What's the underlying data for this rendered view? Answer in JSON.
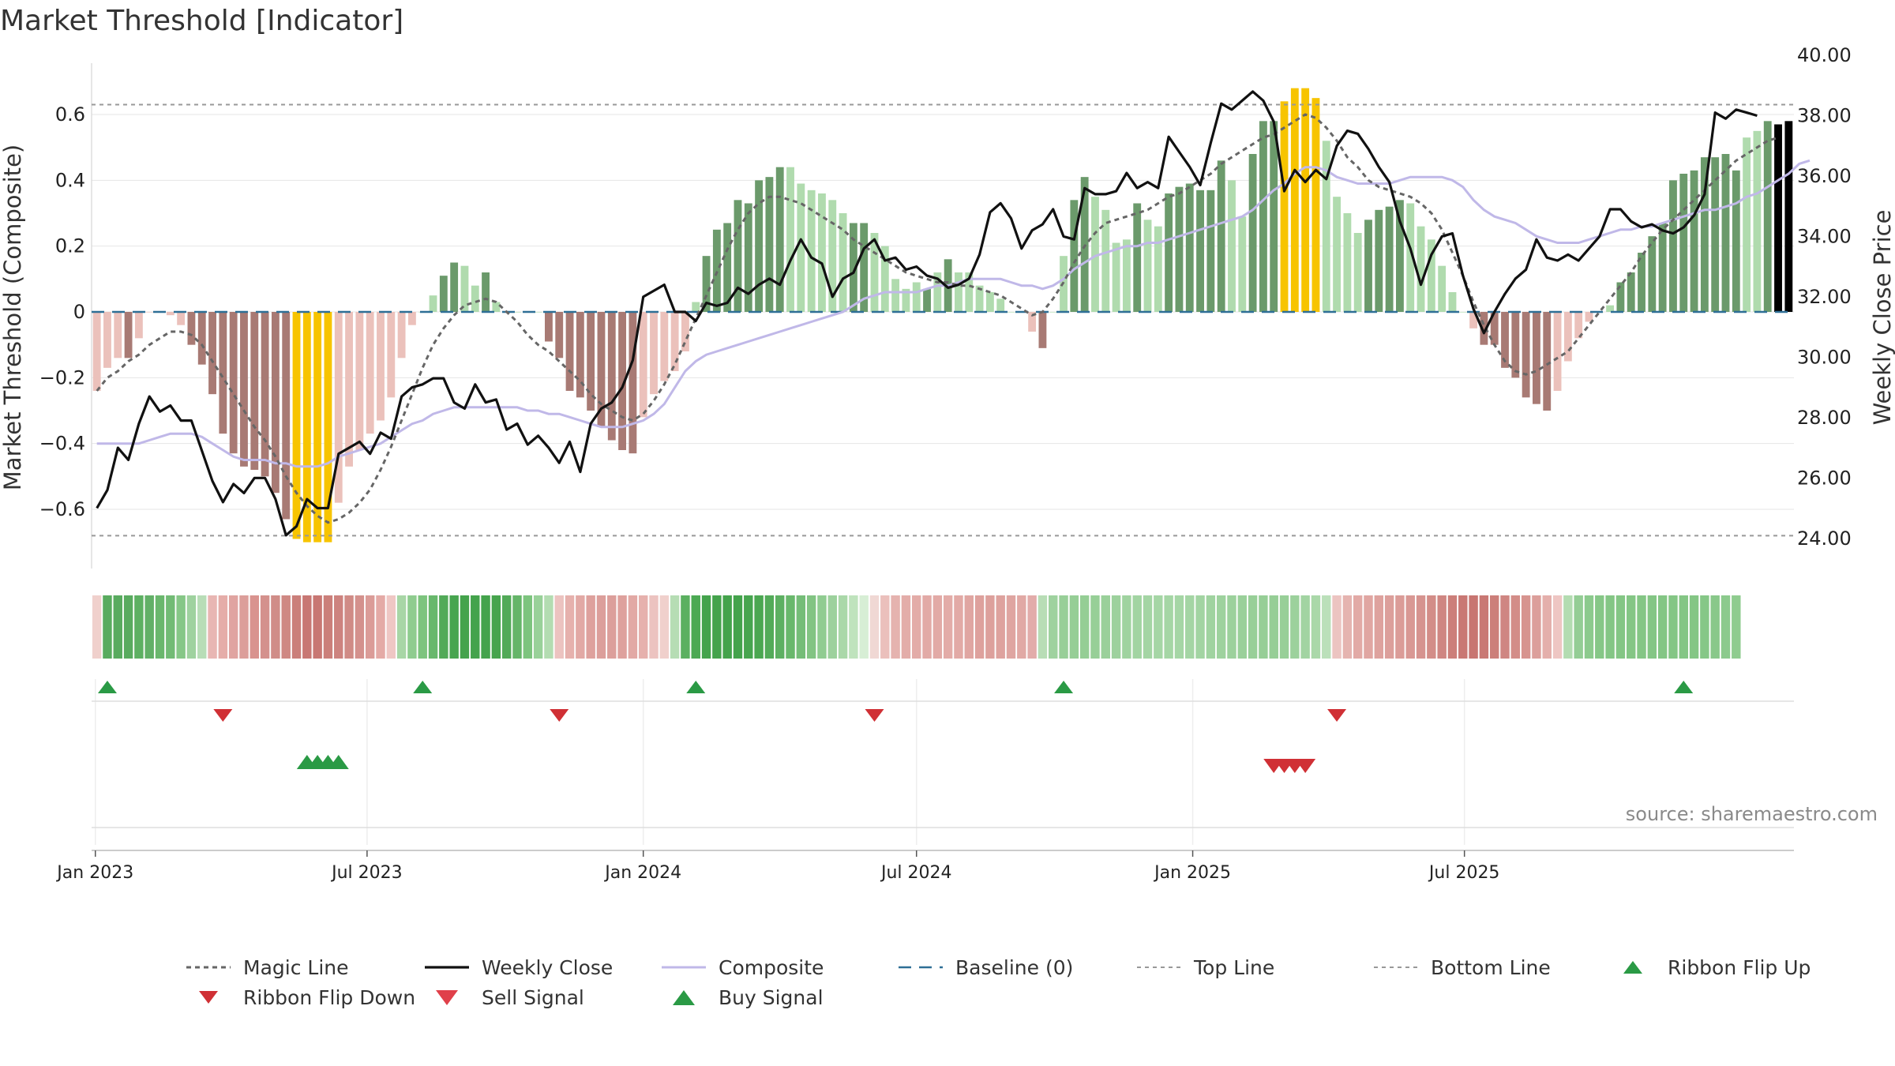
{
  "chart_data": {
    "type": "bar",
    "title": "Market Threshold [Indicator]",
    "ylabel_left": "Market Threshold (Composite)",
    "ylabel_right": "Weekly Close Price",
    "source": "source: sharemaestro.com",
    "x_start": "2023-01-02",
    "x_end": "2025-09-15",
    "x_ticks": [
      {
        "date": "2023-01-01",
        "label": "Jan 2023"
      },
      {
        "date": "2023-07-01",
        "label": "Jul 2023"
      },
      {
        "date": "2024-01-01",
        "label": "Jan 2024"
      },
      {
        "date": "2024-07-01",
        "label": "Jul 2024"
      },
      {
        "date": "2025-01-01",
        "label": "Jan 2025"
      },
      {
        "date": "2025-07-01",
        "label": "Jul 2025"
      }
    ],
    "ylim_left": [
      -0.78,
      0.78
    ],
    "yticks_left": [
      {
        "value": 0.6,
        "label": "0.6"
      },
      {
        "value": 0.4,
        "label": "0.4"
      },
      {
        "value": 0.2,
        "label": "0.2"
      },
      {
        "value": 0,
        "label": "0"
      },
      {
        "value": -0.2,
        "label": "−0.2"
      },
      {
        "value": -0.4,
        "label": "−0.4"
      },
      {
        "value": -0.6,
        "label": "−0.6"
      }
    ],
    "ylim_right": [
      23.0,
      40.0
    ],
    "yticks_right": [
      {
        "value": 40,
        "label": "40.00"
      },
      {
        "value": 38,
        "label": "38.00"
      },
      {
        "value": 36,
        "label": "36.00"
      },
      {
        "value": 34,
        "label": "34.00"
      },
      {
        "value": 32,
        "label": "32.00"
      },
      {
        "value": 30,
        "label": "30.00"
      },
      {
        "value": 28,
        "label": "28.00"
      },
      {
        "value": 26,
        "label": "26.00"
      },
      {
        "value": 24,
        "label": "24.00"
      }
    ],
    "top_line": 0.63,
    "bottom_line": -0.68,
    "grid": true,
    "legend_position": "bottom",
    "colors": {
      "strong_up": "#6b9a6b",
      "weak_up": "#b0dbae",
      "strong_down": "#a87a74",
      "weak_down": "#ebc1bb",
      "extreme": "#f7c400",
      "close": "#111111",
      "composite": "#c0b8e8",
      "magic": "#666666",
      "baseline": "#2e6f96",
      "threshold": "#999999",
      "buy": "#2a9a45",
      "sell": "#d03035"
    },
    "composite_bars": [
      -0.24,
      -0.17,
      -0.14,
      -0.14,
      -0.08,
      0.0,
      0.0,
      -0.01,
      -0.04,
      -0.1,
      -0.16,
      -0.25,
      -0.37,
      -0.43,
      -0.47,
      -0.48,
      -0.5,
      -0.55,
      -0.63,
      -0.69,
      -0.7,
      -0.7,
      -0.7,
      -0.58,
      -0.47,
      -0.42,
      -0.37,
      -0.33,
      -0.26,
      -0.14,
      -0.04,
      0.0,
      0.05,
      0.11,
      0.15,
      0.14,
      0.08,
      0.12,
      0.03,
      0.0,
      0.0,
      0.0,
      0.0,
      -0.09,
      -0.14,
      -0.24,
      -0.26,
      -0.3,
      -0.35,
      -0.39,
      -0.42,
      -0.43,
      -0.32,
      -0.25,
      -0.21,
      -0.18,
      -0.12,
      0.03,
      0.17,
      0.25,
      0.27,
      0.34,
      0.33,
      0.4,
      0.41,
      0.44,
      0.44,
      0.39,
      0.37,
      0.36,
      0.34,
      0.3,
      0.27,
      0.27,
      0.24,
      0.2,
      0.1,
      0.07,
      0.09,
      0.07,
      0.12,
      0.16,
      0.12,
      0.12,
      0.08,
      0.06,
      0.04,
      0.0,
      0.0,
      -0.06,
      -0.11,
      0.0,
      0.17,
      0.34,
      0.41,
      0.35,
      0.31,
      0.21,
      0.22,
      0.33,
      0.28,
      0.26,
      0.36,
      0.38,
      0.39,
      0.37,
      0.37,
      0.46,
      0.4,
      0.29,
      0.48,
      0.58,
      0.58,
      0.64,
      0.68,
      0.68,
      0.65,
      0.52,
      0.35,
      0.3,
      0.24,
      0.28,
      0.31,
      0.32,
      0.34,
      0.33,
      0.26,
      0.22,
      0.14,
      0.06,
      0.0,
      -0.05,
      -0.1,
      -0.1,
      -0.17,
      -0.2,
      -0.26,
      -0.28,
      -0.3,
      -0.24,
      -0.15,
      -0.08,
      -0.03,
      0.0,
      0.02,
      0.09,
      0.12,
      0.18,
      0.23,
      0.27,
      0.4,
      0.42,
      0.43,
      0.47,
      0.47,
      0.48,
      0.43,
      0.53,
      0.55,
      0.58,
      0.57,
      0.58
    ],
    "bar_state": [
      "wd",
      "wd",
      "wd",
      "sd",
      "wd",
      "wd",
      "wd",
      "wd",
      "wd",
      "sd",
      "sd",
      "sd",
      "sd",
      "sd",
      "sd",
      "sd",
      "sd",
      "sd",
      "sd",
      "ex",
      "ex",
      "ex",
      "ex",
      "wd",
      "wd",
      "wd",
      "wd",
      "wd",
      "wd",
      "wd",
      "wd",
      "wu",
      "wu",
      "su",
      "su",
      "wu",
      "wu",
      "su",
      "wu",
      "wu",
      "wu",
      "wu",
      "wu",
      "sd",
      "sd",
      "sd",
      "sd",
      "sd",
      "sd",
      "sd",
      "sd",
      "sd",
      "wd",
      "wd",
      "wd",
      "wd",
      "wd",
      "wu",
      "su",
      "su",
      "su",
      "su",
      "su",
      "su",
      "su",
      "su",
      "wu",
      "wu",
      "wu",
      "wu",
      "wu",
      "wu",
      "su",
      "su",
      "wu",
      "wu",
      "wu",
      "wu",
      "wu",
      "su",
      "wu",
      "su",
      "wu",
      "wu",
      "wu",
      "wu",
      "wu",
      "wu",
      "wu",
      "wd",
      "sd",
      "wu",
      "wu",
      "su",
      "su",
      "wu",
      "wu",
      "wu",
      "wu",
      "su",
      "wu",
      "wu",
      "su",
      "su",
      "su",
      "su",
      "su",
      "su",
      "wu",
      "wu",
      "su",
      "su",
      "su",
      "ex",
      "ex",
      "ex",
      "ex",
      "wu",
      "wu",
      "wu",
      "wu",
      "su",
      "su",
      "su",
      "su",
      "wu",
      "wu",
      "wu",
      "wu",
      "wu",
      "wu",
      "wd",
      "sd",
      "sd",
      "sd",
      "sd",
      "sd",
      "sd",
      "sd",
      "wd",
      "wd",
      "wd",
      "wd",
      "wu",
      "wu",
      "su",
      "su",
      "su",
      "su",
      "su",
      "su",
      "su",
      "su",
      "su",
      "su",
      "su",
      "su",
      "wu",
      "wu",
      "su"
    ],
    "weekly_close": [
      25.0,
      25.6,
      27.0,
      26.6,
      27.8,
      28.7,
      28.2,
      28.4,
      27.9,
      27.9,
      26.9,
      25.9,
      25.2,
      25.8,
      25.5,
      26.0,
      26.0,
      25.3,
      24.1,
      24.4,
      25.3,
      25.0,
      25.0,
      26.8,
      27.0,
      27.2,
      26.8,
      27.5,
      27.3,
      28.7,
      29.0,
      29.1,
      29.3,
      29.3,
      28.5,
      28.3,
      29.1,
      28.5,
      28.6,
      27.6,
      27.8,
      27.1,
      27.4,
      27.0,
      26.5,
      27.2,
      26.2,
      27.8,
      28.3,
      28.5,
      29.0,
      29.9,
      32.0,
      32.2,
      32.4,
      31.5,
      31.5,
      31.2,
      31.8,
      31.7,
      31.8,
      32.3,
      32.1,
      32.4,
      32.6,
      32.4,
      33.2,
      33.9,
      33.3,
      33.1,
      32.0,
      32.6,
      32.8,
      33.6,
      33.9,
      33.2,
      33.3,
      32.9,
      33.0,
      32.7,
      32.6,
      32.3,
      32.4,
      32.6,
      33.4,
      34.8,
      35.1,
      34.6,
      33.6,
      34.2,
      34.4,
      34.9,
      34.0,
      33.9,
      35.6,
      35.4,
      35.4,
      35.5,
      36.1,
      35.6,
      35.8,
      35.6,
      37.3,
      36.8,
      36.3,
      35.7,
      37.1,
      38.4,
      38.2,
      38.5,
      38.8,
      38.5,
      37.8,
      35.5,
      36.2,
      35.8,
      36.2,
      35.9,
      37.0,
      37.5,
      37.4,
      36.9,
      36.3,
      35.8,
      34.5,
      33.6,
      32.4,
      33.4,
      34.0,
      34.1,
      32.7,
      31.6,
      30.8,
      31.5,
      32.1,
      32.6,
      32.9,
      33.9,
      33.3,
      33.2,
      33.4,
      33.2,
      33.6,
      34.0,
      34.9,
      34.9,
      34.5,
      34.3,
      34.4,
      34.2,
      34.1,
      34.3,
      34.7,
      35.4,
      38.1,
      37.9,
      38.2,
      38.1,
      38.0
    ],
    "composite_line": [
      -0.4,
      -0.4,
      -0.4,
      -0.4,
      -0.4,
      -0.39,
      -0.38,
      -0.37,
      -0.37,
      -0.37,
      -0.38,
      -0.4,
      -0.42,
      -0.44,
      -0.45,
      -0.45,
      -0.45,
      -0.46,
      -0.46,
      -0.47,
      -0.47,
      -0.47,
      -0.46,
      -0.44,
      -0.43,
      -0.42,
      -0.41,
      -0.4,
      -0.38,
      -0.36,
      -0.34,
      -0.33,
      -0.31,
      -0.3,
      -0.29,
      -0.29,
      -0.29,
      -0.29,
      -0.29,
      -0.29,
      -0.29,
      -0.3,
      -0.3,
      -0.31,
      -0.31,
      -0.32,
      -0.33,
      -0.34,
      -0.35,
      -0.35,
      -0.35,
      -0.34,
      -0.33,
      -0.31,
      -0.28,
      -0.23,
      -0.18,
      -0.15,
      -0.13,
      -0.12,
      -0.11,
      -0.1,
      -0.09,
      -0.08,
      -0.07,
      -0.06,
      -0.05,
      -0.04,
      -0.03,
      -0.02,
      -0.01,
      0.0,
      0.02,
      0.04,
      0.05,
      0.06,
      0.06,
      0.06,
      0.06,
      0.07,
      0.08,
      0.08,
      0.09,
      0.1,
      0.1,
      0.1,
      0.1,
      0.09,
      0.08,
      0.08,
      0.07,
      0.08,
      0.1,
      0.13,
      0.15,
      0.17,
      0.18,
      0.19,
      0.2,
      0.2,
      0.21,
      0.21,
      0.22,
      0.23,
      0.24,
      0.25,
      0.26,
      0.27,
      0.28,
      0.29,
      0.31,
      0.34,
      0.37,
      0.39,
      0.42,
      0.44,
      0.44,
      0.43,
      0.41,
      0.4,
      0.39,
      0.39,
      0.39,
      0.39,
      0.4,
      0.41,
      0.41,
      0.41,
      0.41,
      0.4,
      0.38,
      0.34,
      0.31,
      0.29,
      0.28,
      0.27,
      0.25,
      0.23,
      0.22,
      0.21,
      0.21,
      0.21,
      0.22,
      0.23,
      0.24,
      0.25,
      0.25,
      0.26,
      0.26,
      0.27,
      0.28,
      0.29,
      0.3,
      0.31,
      0.31,
      0.32,
      0.33,
      0.35,
      0.36,
      0.38,
      0.4,
      0.42,
      0.45,
      0.46
    ],
    "magic_line": [
      -0.24,
      -0.2,
      -0.18,
      -0.15,
      -0.13,
      -0.1,
      -0.08,
      -0.06,
      -0.06,
      -0.07,
      -0.1,
      -0.15,
      -0.2,
      -0.25,
      -0.3,
      -0.35,
      -0.39,
      -0.44,
      -0.5,
      -0.55,
      -0.59,
      -0.62,
      -0.64,
      -0.63,
      -0.61,
      -0.58,
      -0.54,
      -0.48,
      -0.41,
      -0.33,
      -0.25,
      -0.17,
      -0.1,
      -0.05,
      -0.01,
      0.02,
      0.03,
      0.04,
      0.03,
      0.0,
      -0.03,
      -0.07,
      -0.1,
      -0.12,
      -0.15,
      -0.18,
      -0.21,
      -0.25,
      -0.28,
      -0.3,
      -0.32,
      -0.33,
      -0.31,
      -0.27,
      -0.22,
      -0.16,
      -0.09,
      -0.02,
      0.05,
      0.12,
      0.19,
      0.25,
      0.3,
      0.33,
      0.35,
      0.35,
      0.34,
      0.33,
      0.31,
      0.29,
      0.27,
      0.25,
      0.22,
      0.2,
      0.18,
      0.16,
      0.14,
      0.12,
      0.11,
      0.1,
      0.09,
      0.09,
      0.08,
      0.08,
      0.07,
      0.06,
      0.05,
      0.03,
      0.01,
      -0.01,
      0.0,
      0.04,
      0.09,
      0.15,
      0.2,
      0.24,
      0.27,
      0.28,
      0.29,
      0.3,
      0.31,
      0.33,
      0.35,
      0.36,
      0.38,
      0.4,
      0.42,
      0.45,
      0.47,
      0.49,
      0.51,
      0.53,
      0.54,
      0.56,
      0.58,
      0.6,
      0.59,
      0.56,
      0.52,
      0.47,
      0.44,
      0.4,
      0.38,
      0.37,
      0.36,
      0.35,
      0.33,
      0.3,
      0.25,
      0.18,
      0.11,
      0.03,
      -0.04,
      -0.1,
      -0.15,
      -0.18,
      -0.19,
      -0.18,
      -0.16,
      -0.14,
      -0.12,
      -0.08,
      -0.04,
      0.0,
      0.04,
      0.08,
      0.12,
      0.17,
      0.21,
      0.25,
      0.28,
      0.31,
      0.34,
      0.37,
      0.4,
      0.43,
      0.46,
      0.48,
      0.5,
      0.52,
      0.53
    ],
    "ribbon": [
      "#f0d0cc",
      "#59ab5f",
      "#59ab5f",
      "#59ab5f",
      "#5db062",
      "#62b067",
      "#6ab76d",
      "#72bb75",
      "#86c787",
      "#9fd29f",
      "#b8ddb7",
      "#e8b6b3",
      "#e5ada9",
      "#e0a4a1",
      "#dc9e9a",
      "#d9938f",
      "#d4918d",
      "#d08d88",
      "#cf8883",
      "#cb7f7a",
      "#c87773",
      "#c87773",
      "#cb7f7a",
      "#cd837f",
      "#d08b86",
      "#d4918d",
      "#db9c98",
      "#e4aaa6",
      "#efc7c4",
      "#a8d6a6",
      "#8fcc8f",
      "#7dc47e",
      "#68b86c",
      "#52aa58",
      "#47a54f",
      "#44a34c",
      "#44a34c",
      "#44a34c",
      "#46a44d",
      "#52aa58",
      "#65b569",
      "#7dc47e",
      "#99d199",
      "#b3dcb1",
      "#ecc3c0",
      "#e6b1ad",
      "#e2a9a5",
      "#dea19d",
      "#dc9f9b",
      "#dc9f9b",
      "#dea19d",
      "#e2a9a5",
      "#e6b1ad",
      "#ecc3c0",
      "#f0d0cc",
      "#b6ddb4",
      "#5bb060",
      "#4ca953",
      "#44a34c",
      "#44a34c",
      "#44a34c",
      "#44a34c",
      "#47a54f",
      "#4ba751",
      "#53ab59",
      "#5db062",
      "#69b86c",
      "#75bd78",
      "#82c483",
      "#90cc91",
      "#9dd19d",
      "#aad8a9",
      "#bfe3bd",
      "#d7eed5",
      "#f0d8d4",
      "#ebc0bc",
      "#e5b3af",
      "#e3ada9",
      "#e3aca8",
      "#e2aaa6",
      "#e2aaa6",
      "#e3aca8",
      "#e2aaa6",
      "#e0a6a2",
      "#dea19d",
      "#dda09c",
      "#dea29e",
      "#dfa5a1",
      "#e1a9a5",
      "#e2acaa",
      "#b8ddb6",
      "#9fd29f",
      "#98cf98",
      "#96ce96",
      "#95ce95",
      "#97cf97",
      "#9ad09a",
      "#9dd19d",
      "#a0d3a0",
      "#a2d4a2",
      "#a4d5a4",
      "#a5d6a5",
      "#a5d6a5",
      "#a5d6a5",
      "#a4d5a4",
      "#a2d4a2",
      "#a0d3a0",
      "#9ed29e",
      "#9cd19c",
      "#9ad09a",
      "#98cf98",
      "#96ce96",
      "#96ce96",
      "#98cf98",
      "#9cd19c",
      "#a2d4a2",
      "#aad8a9",
      "#bbe0ba",
      "#ecc4c1",
      "#e5b4b0",
      "#e2aaa6",
      "#e0a6a2",
      "#dea29e",
      "#dc9f9b",
      "#db9c98",
      "#d99894",
      "#d6938f",
      "#d38d88",
      "#cf8682",
      "#cc7f7a",
      "#c97874",
      "#c87571",
      "#c97874",
      "#cc7f7a",
      "#cf8682",
      "#d38d88",
      "#d7948f",
      "#dc9f9b",
      "#e4afab",
      "#eec6c3",
      "#b3dcb1",
      "#94cd95",
      "#8cca8d",
      "#86c787",
      "#84c685",
      "#84c685",
      "#84c685",
      "#84c685",
      "#84c685",
      "#84c685",
      "#84c685",
      "#84c685",
      "#84c685",
      "#86c787",
      "#89c88a",
      "#8cca8d",
      "#8fcc8f"
    ],
    "ribbon_flip_up": [
      1,
      31,
      57,
      92,
      151
    ],
    "ribbon_flip_down": [
      12,
      44,
      74,
      118
    ],
    "buy_signals": [
      20,
      21,
      22,
      23
    ],
    "sell_signals": [
      112,
      113,
      114,
      115
    ],
    "legend": [
      {
        "key": "magic",
        "label": "Magic Line"
      },
      {
        "key": "close",
        "label": "Weekly Close"
      },
      {
        "key": "composite",
        "label": "Composite"
      },
      {
        "key": "baseline",
        "label": "Baseline (0)"
      },
      {
        "key": "top",
        "label": "Top Line"
      },
      {
        "key": "bottom",
        "label": "Bottom Line"
      },
      {
        "key": "flipup",
        "label": "Ribbon Flip Up"
      },
      {
        "key": "flipdown",
        "label": "Ribbon Flip Down"
      },
      {
        "key": "sell",
        "label": "Sell Signal"
      },
      {
        "key": "buy",
        "label": "Buy Signal"
      }
    ]
  }
}
